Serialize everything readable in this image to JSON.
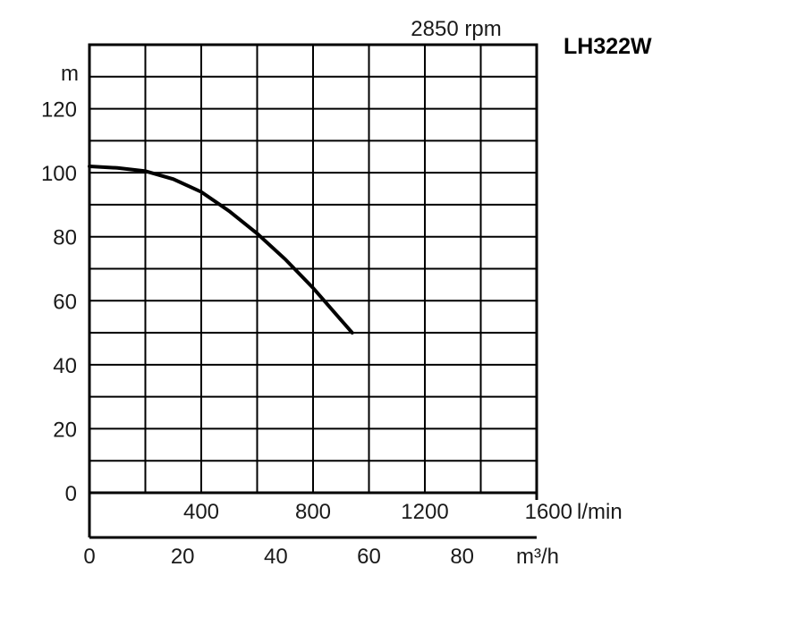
{
  "chart_data": {
    "type": "line",
    "title": "LH322W",
    "subtitle": "2850 rpm",
    "ylabel": "m",
    "x_primary_unit": "l/min",
    "x_secondary_unit": "m³/h",
    "ylim": [
      0,
      140
    ],
    "xlim_lpm": [
      0,
      1600
    ],
    "xlim_m3h": [
      0,
      96
    ],
    "y_ticks": [
      "0",
      "20",
      "40",
      "60",
      "80",
      "100",
      "120"
    ],
    "x_primary_ticks": [
      "400",
      "800",
      "1200",
      "1600"
    ],
    "x_secondary_ticks": [
      "0",
      "20",
      "40",
      "60",
      "80"
    ],
    "grid": true,
    "series": [
      {
        "x_lpm": [
          0,
          100,
          200,
          300,
          400,
          500,
          600,
          700,
          800,
          900,
          940
        ],
        "y_m": [
          102,
          101.5,
          100.5,
          98,
          94,
          88,
          81,
          73,
          64,
          54,
          50
        ]
      }
    ]
  }
}
